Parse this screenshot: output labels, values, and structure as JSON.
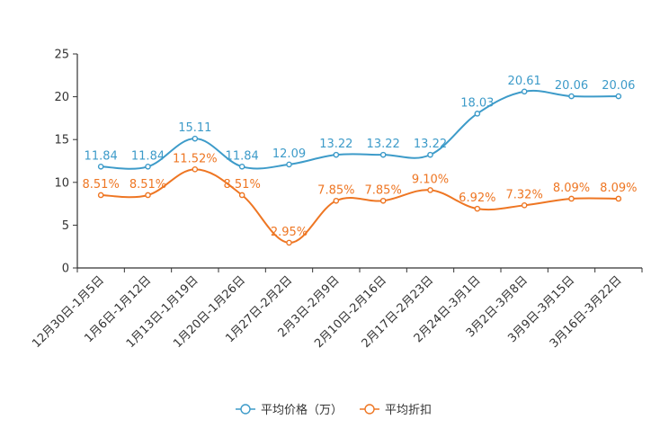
{
  "chart_data": {
    "type": "line",
    "title": "",
    "xlabel": "",
    "ylabel": "",
    "ylim": [
      0,
      25
    ],
    "yticks": [
      0,
      5,
      10,
      15,
      20,
      25
    ],
    "grid": false,
    "legend_position": "bottom-center",
    "categories": [
      "12月30日-1月5日",
      "1月6日-1月12日",
      "1月13日-1月19日",
      "1月20日-1月26日",
      "1月27日-2月2日",
      "2月3日-2月9日",
      "2月10日-2月16日",
      "2月17日-2月23日",
      "2月24日-3月1日",
      "3月2日-3月8日",
      "3月9日-3月15日",
      "3月16日-3月22日"
    ],
    "series": [
      {
        "name": "平均价格（万）",
        "color": "#3d9bc9",
        "values": [
          11.84,
          11.84,
          15.11,
          11.84,
          12.09,
          13.22,
          13.22,
          13.22,
          18.03,
          20.61,
          20.06,
          20.06
        ],
        "labels": [
          "11.84",
          "11.84",
          "15.11",
          "11.84",
          "12.09",
          "13.22",
          "13.22",
          "13.22",
          "18.03",
          "20.61",
          "20.06",
          "20.06"
        ]
      },
      {
        "name": "平均折扣",
        "color": "#ee7623",
        "values": [
          8.51,
          8.51,
          11.52,
          8.51,
          2.95,
          7.85,
          7.85,
          9.1,
          6.92,
          7.32,
          8.09,
          8.09
        ],
        "labels": [
          "8.51%",
          "8.51%",
          "11.52%",
          "8.51%",
          "2.95%",
          "7.85%",
          "7.85%",
          "9.10%",
          "6.92%",
          "7.32%",
          "8.09%",
          "8.09%"
        ]
      }
    ]
  }
}
